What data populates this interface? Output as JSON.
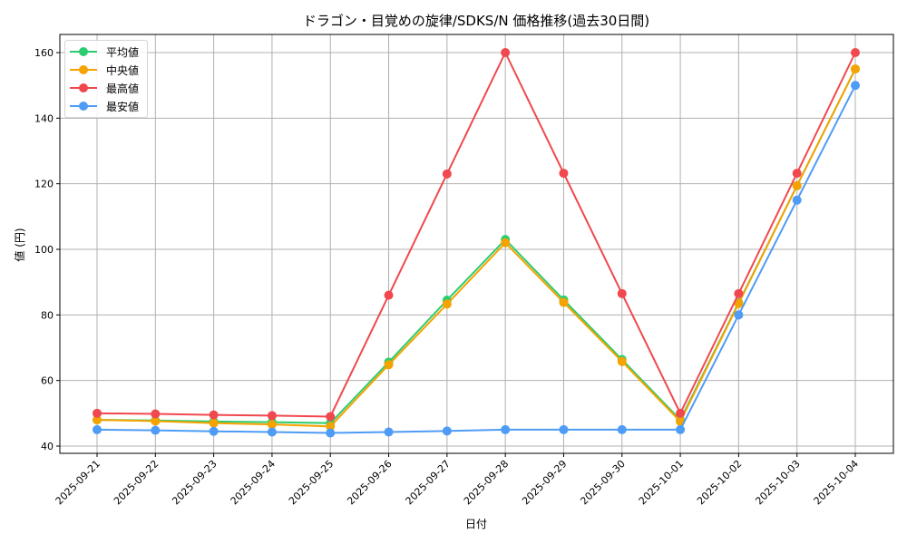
{
  "chart_data": {
    "type": "line",
    "title": "ドラゴン・目覚めの旋律/SDKS/N 価格推移(過去30日間)",
    "xlabel": "日付",
    "ylabel": "値 (円)",
    "ylim": [
      37,
      166
    ],
    "yticks": [
      40,
      60,
      80,
      100,
      120,
      140,
      160
    ],
    "grid": true,
    "legend_position": "upper left",
    "categories": [
      "2025-09-21",
      "2025-09-22",
      "2025-09-23",
      "2025-09-24",
      "2025-09-25",
      "2025-09-26",
      "2025-09-27",
      "2025-09-28",
      "2025-09-29",
      "2025-09-30",
      "2025-10-01",
      "2025-10-02",
      "2025-10-03",
      "2025-10-04"
    ],
    "series": [
      {
        "name": "平均値",
        "color": "#2ecc71",
        "values": [
          48,
          47.8,
          47.5,
          47.3,
          47,
          65.6,
          84.5,
          103,
          84.6,
          66.4,
          48,
          83.7,
          119.4,
          155
        ]
      },
      {
        "name": "中央値",
        "color": "#f5a300",
        "values": [
          48,
          47.6,
          47,
          46.6,
          46,
          64.8,
          83.3,
          102,
          83.8,
          65.8,
          47.5,
          83.5,
          119.4,
          155
        ]
      },
      {
        "name": "最高値",
        "color": "#f0484e",
        "values": [
          50,
          49.8,
          49.5,
          49.3,
          49,
          86,
          123,
          160,
          123.2,
          86.5,
          50,
          86.5,
          123.2,
          160
        ]
      },
      {
        "name": "最安値",
        "color": "#4e9cf5",
        "values": [
          45,
          44.8,
          44.5,
          44.3,
          44,
          44.3,
          44.6,
          45,
          45,
          45,
          45,
          80,
          115,
          150
        ]
      }
    ]
  }
}
